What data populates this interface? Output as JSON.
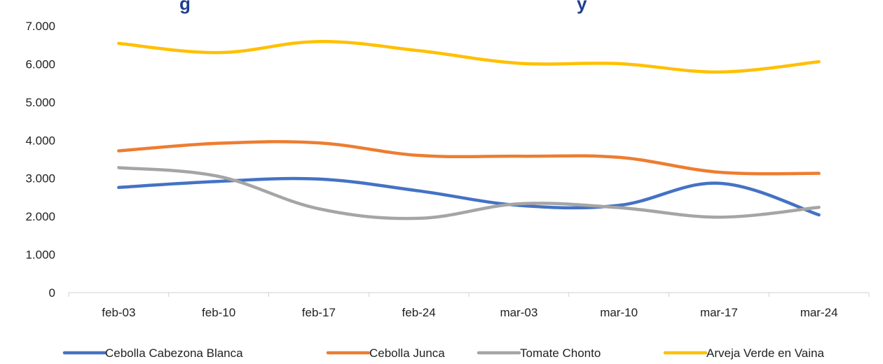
{
  "chart_data": {
    "type": "line",
    "title_fragment_left": "g",
    "title_fragment_right": "y",
    "categories": [
      "feb-03",
      "feb-10",
      "feb-17",
      "feb-24",
      "mar-03",
      "mar-10",
      "mar-17",
      "mar-24"
    ],
    "ylim": [
      0,
      7000
    ],
    "y_ticks": [
      0,
      1000,
      2000,
      3000,
      4000,
      5000,
      6000,
      7000
    ],
    "y_tick_labels": [
      "0",
      "1.000",
      "2.000",
      "3.000",
      "4.000",
      "5.000",
      "6.000",
      "7.000"
    ],
    "grid": false,
    "legend_position": "bottom",
    "series": [
      {
        "name": "Cebolla Cabezona Blanca",
        "color": "#4472c4",
        "values": [
          2760,
          2920,
          2980,
          2670,
          2290,
          2290,
          2870,
          2040
        ]
      },
      {
        "name": "Cebolla Junca",
        "color": "#ed7d31",
        "values": [
          3720,
          3920,
          3930,
          3600,
          3580,
          3550,
          3160,
          3130
        ]
      },
      {
        "name": "Tomate Chonto",
        "color": "#a5a5a5",
        "values": [
          3280,
          3050,
          2200,
          1950,
          2330,
          2230,
          1980,
          2240
        ]
      },
      {
        "name": "Arveja Verde en Vaina",
        "color": "#ffc000",
        "values": [
          6540,
          6300,
          6590,
          6350,
          6020,
          6010,
          5790,
          6060
        ]
      }
    ]
  }
}
